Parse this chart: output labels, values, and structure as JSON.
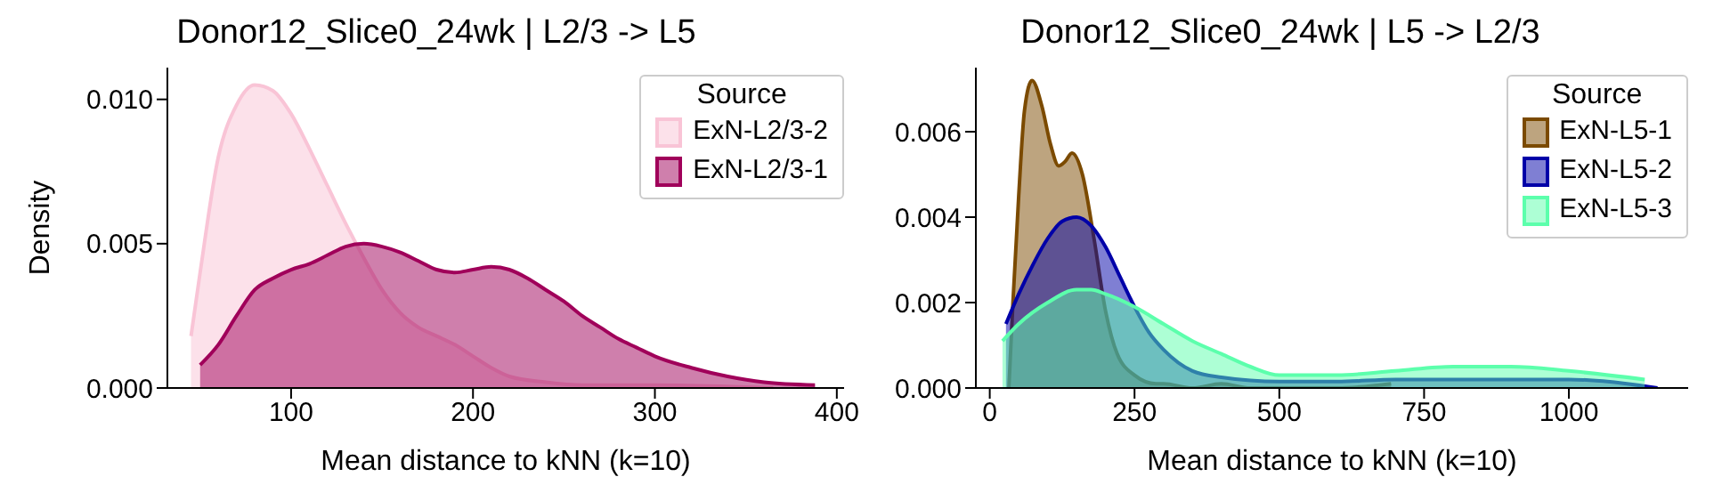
{
  "chart_data": [
    {
      "type": "area",
      "title": "Donor12_Slice0_24wk | L2/3 -> L5",
      "xlabel": "Mean distance to kNN (k=10)",
      "ylabel": "Density",
      "legend_title": "Source",
      "legend": "top right",
      "grid": false,
      "xlim": [
        32,
        404
      ],
      "ylim": [
        0,
        0.0111
      ],
      "xticks": [
        100,
        200,
        300,
        400
      ],
      "yticks": [
        {
          "value": 0,
          "label": "0.000"
        },
        {
          "value": 0.005,
          "label": "0.005"
        },
        {
          "value": 0.01,
          "label": "0.010"
        }
      ],
      "series": [
        {
          "name": "ExN-L2/3-2",
          "color": "#f9c4d6",
          "x": [
            45,
            50,
            60,
            70,
            80,
            90,
            100,
            110,
            120,
            130,
            140,
            150,
            160,
            170,
            180,
            190,
            200,
            210,
            220,
            240,
            260,
            300,
            365
          ],
          "values": [
            0.0018,
            0.004,
            0.008,
            0.0098,
            0.0105,
            0.0103,
            0.0095,
            0.0083,
            0.007,
            0.0057,
            0.0045,
            0.0034,
            0.0026,
            0.0021,
            0.0018,
            0.0015,
            0.0011,
            0.0007,
            0.0004,
            0.0002,
            0.0001,
            0.0001,
            0
          ]
        },
        {
          "name": "ExN-L2/3-1",
          "color": "#a0005a",
          "x": [
            50,
            60,
            70,
            80,
            90,
            100,
            110,
            120,
            130,
            140,
            150,
            160,
            170,
            180,
            190,
            200,
            210,
            220,
            230,
            240,
            250,
            260,
            270,
            280,
            290,
            300,
            320,
            340,
            360,
            388
          ],
          "values": [
            0.0008,
            0.0015,
            0.0025,
            0.0034,
            0.0038,
            0.0041,
            0.0043,
            0.0046,
            0.0049,
            0.005,
            0.0049,
            0.0047,
            0.0044,
            0.0041,
            0.004,
            0.0041,
            0.0042,
            0.0041,
            0.0038,
            0.0034,
            0.003,
            0.0025,
            0.0021,
            0.0017,
            0.0014,
            0.0011,
            0.0007,
            0.0004,
            0.0002,
            0.0001
          ]
        }
      ]
    },
    {
      "type": "area",
      "title": "Donor12_Slice0_24wk | L5 -> L2/3",
      "xlabel": "Mean distance to kNN (k=10)",
      "legend_title": "Source",
      "legend": "top right",
      "grid": false,
      "xlim": [
        -24,
        1206
      ],
      "ylim": [
        0,
        0.0075
      ],
      "xticks": [
        0,
        250,
        500,
        750,
        1000
      ],
      "yticks": [
        {
          "value": 0,
          "label": "0.000"
        },
        {
          "value": 0.002,
          "label": "0.002"
        },
        {
          "value": 0.004,
          "label": "0.004"
        },
        {
          "value": 0.006,
          "label": "0.006"
        }
      ],
      "series": [
        {
          "name": "ExN-L5-1",
          "color": "#7b4a00",
          "x": [
            33,
            40,
            50,
            60,
            73,
            90,
            105,
            119,
            130,
            142,
            160,
            180,
            200,
            220,
            250,
            287,
            300,
            350,
            400,
            450,
            500,
            600,
            693
          ],
          "values": [
            0,
            0.002,
            0.0045,
            0.0065,
            0.0072,
            0.0066,
            0.0057,
            0.0052,
            0.0053,
            0.0055,
            0.005,
            0.0035,
            0.0018,
            0.0008,
            0.0003,
            0.0001,
            0.0001,
            0,
            0.0001,
            0,
            0,
            0,
            0.0001
          ]
        },
        {
          "name": "ExN-L5-2",
          "color": "#0000a8",
          "x": [
            28,
            50,
            75,
            100,
            125,
            150,
            175,
            200,
            225,
            250,
            275,
            300,
            350,
            400,
            500,
            600,
            700,
            800,
            1000,
            1100,
            1153
          ],
          "values": [
            0.0015,
            0.0022,
            0.0029,
            0.0035,
            0.0039,
            0.004,
            0.0038,
            0.0033,
            0.0026,
            0.0019,
            0.0013,
            0.0009,
            0.0004,
            0.00025,
            0.00015,
            0.00015,
            0.0002,
            0.0002,
            0.0002,
            0.0001,
            0
          ]
        },
        {
          "name": "ExN-L5-3",
          "color": "#5cffac",
          "x": [
            22,
            50,
            100,
            150,
            175,
            200,
            250,
            300,
            350,
            400,
            450,
            500,
            550,
            600,
            700,
            800,
            900,
            1000,
            1131
          ],
          "values": [
            0.0011,
            0.0015,
            0.002,
            0.0023,
            0.0023,
            0.0022,
            0.0019,
            0.0015,
            0.0011,
            0.0008,
            0.0005,
            0.0003,
            0.0003,
            0.0003,
            0.0004,
            0.0005,
            0.0005,
            0.0004,
            0.0002
          ]
        }
      ]
    }
  ]
}
